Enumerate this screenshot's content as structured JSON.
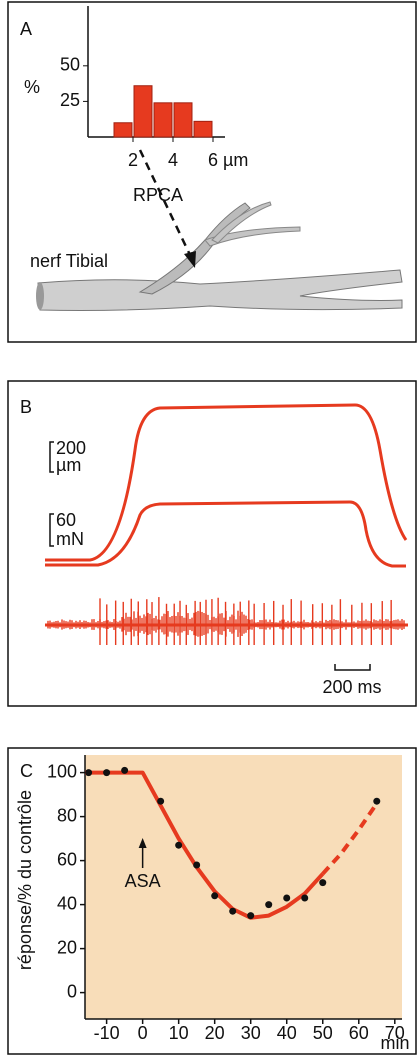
{
  "chart_data": [
    {
      "type": "histogram",
      "panel_label": "A",
      "ylabel": "%",
      "annotation": "RPCA",
      "nerve_label": "nerf Tibial",
      "bins": [
        1,
        2,
        3,
        4,
        5,
        6
      ],
      "values": [
        10,
        36,
        24,
        24,
        11
      ],
      "color": "#e63a1f",
      "xlim": [
        -0.25,
        6.6
      ],
      "xticks": [
        2,
        4,
        {
          "value": 6,
          "label": "6 µm"
        }
      ],
      "ylim": [
        0,
        92
      ],
      "yticks": [
        25,
        50
      ]
    },
    {
      "type": "traces",
      "panel_label": "B",
      "displacement_scale": [
        "200",
        "µm"
      ],
      "force_scale": [
        "60",
        "mN"
      ],
      "time_scale": "200 ms",
      "color": "#e63a1f"
    },
    {
      "type": "scatter",
      "panel_label": "C",
      "ylabel": "réponse/% du contrôle",
      "xlabel": "min",
      "annotation": "ASA",
      "annotation_x": 0,
      "x": [
        -15,
        -10,
        -5,
        5,
        10,
        15,
        20,
        25,
        30,
        35,
        40,
        45,
        50,
        65
      ],
      "values": [
        100,
        100,
        101,
        87,
        67,
        58,
        44,
        37,
        35,
        40,
        43,
        43,
        50,
        87
      ],
      "color": "#111111",
      "fit": {
        "x": [
          -16,
          0,
          5,
          10,
          15,
          20,
          25,
          30,
          35,
          40,
          45,
          50,
          55,
          60,
          65
        ],
        "values": [
          100,
          100,
          85,
          70,
          57,
          46,
          38,
          34,
          35,
          39,
          45,
          54,
          63,
          74,
          86
        ],
        "color": "#e63a1f",
        "dashed_from": 50
      },
      "background": "#f8ddb9",
      "xlim": [
        -16,
        72
      ],
      "xticks": [
        -10,
        0,
        10,
        20,
        30,
        40,
        50,
        60,
        70
      ],
      "ylim": [
        -12,
        108
      ],
      "yticks": [
        0,
        20,
        40,
        60,
        80,
        100
      ]
    }
  ]
}
